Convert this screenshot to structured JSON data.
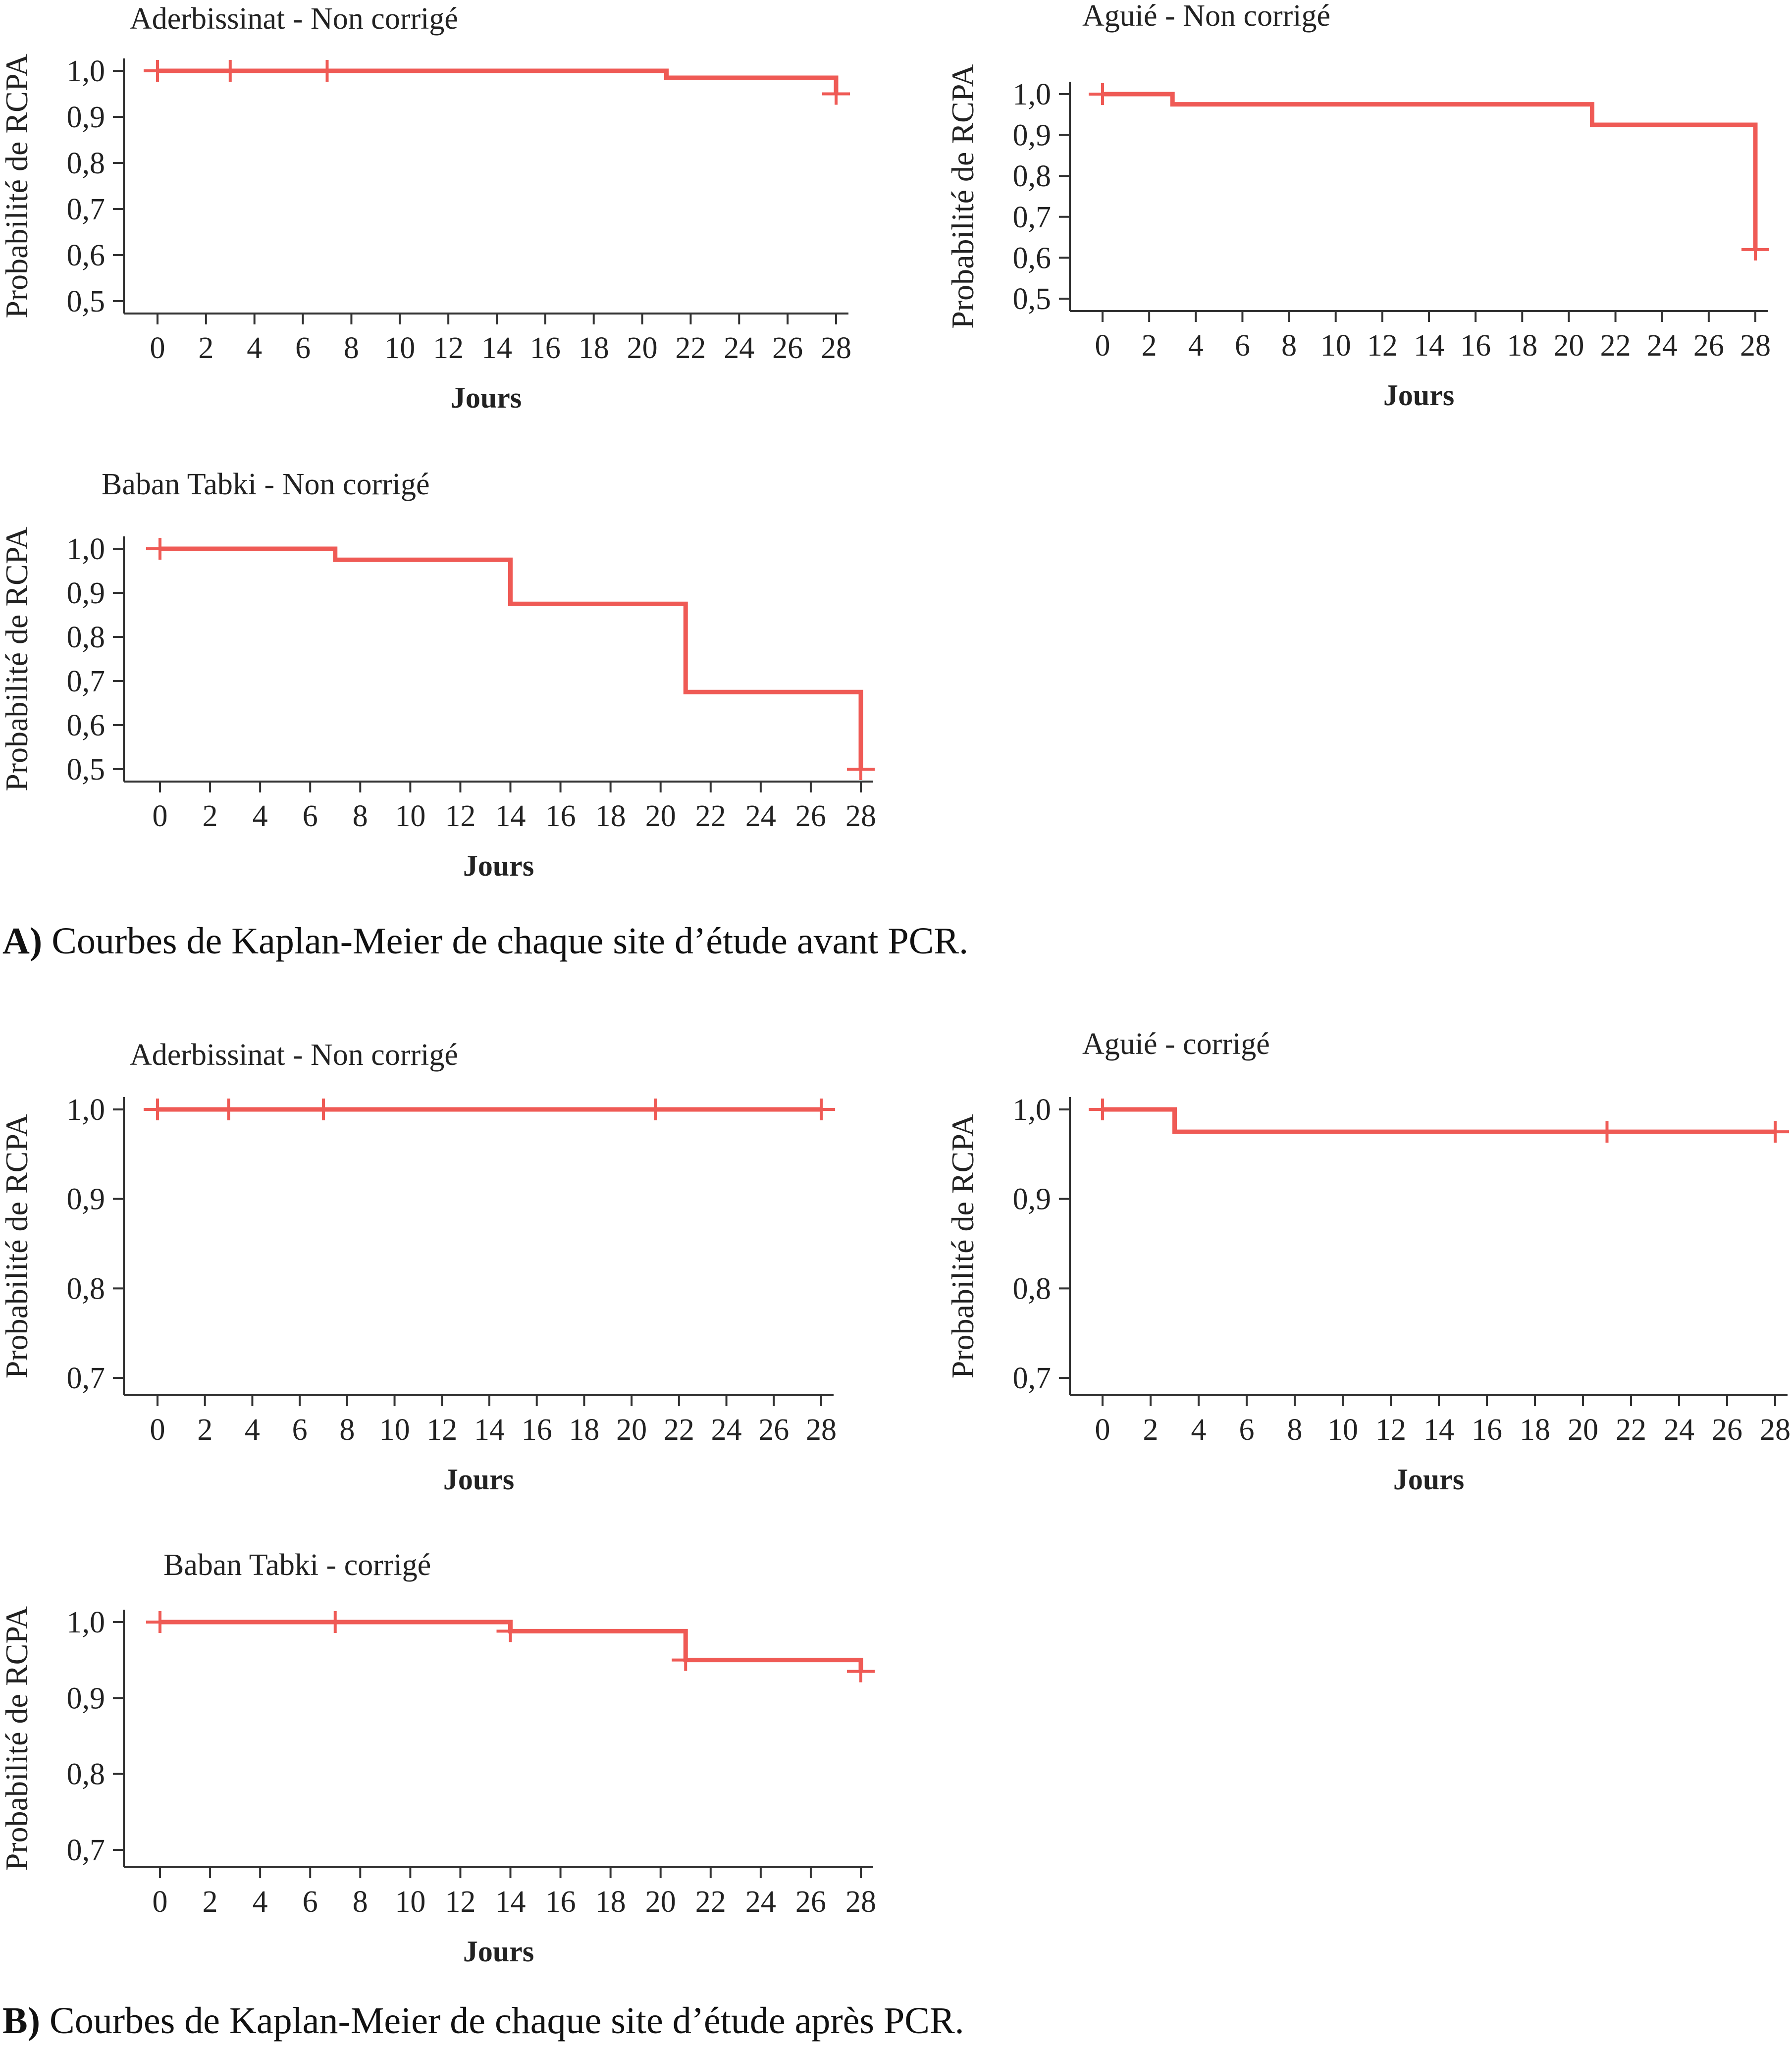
{
  "colors": {
    "curve": "#ef5a55",
    "axis": "#333333",
    "text": "#222222"
  },
  "chart_data": [
    {
      "type": "line",
      "subtype": "kaplan-meier-step",
      "title": "Aderbissinat - Non corrigé",
      "xlabel": "Jours",
      "ylabel": "Probabilité de RCPA",
      "xlim": [
        0,
        28
      ],
      "ylim": [
        0.5,
        1.0
      ],
      "x_ticks": [
        "0",
        "2",
        "4",
        "6",
        "8",
        "10",
        "12",
        "14",
        "16",
        "18",
        "20",
        "22",
        "24",
        "26",
        "28"
      ],
      "y_ticks": [
        "0,5",
        "0,6",
        "0,7",
        "0,8",
        "0,9",
        "1,0"
      ],
      "steps": [
        [
          0,
          1.0
        ],
        [
          21,
          0.985
        ],
        [
          28,
          0.95
        ]
      ],
      "censored": [
        [
          0,
          1.0
        ],
        [
          3,
          1.0
        ],
        [
          7,
          1.0
        ],
        [
          28,
          0.95
        ]
      ]
    },
    {
      "type": "line",
      "subtype": "kaplan-meier-step",
      "title": "Aguié - Non corrigé",
      "xlabel": "Jours",
      "ylabel": "Probabilité de RCPA",
      "xlim": [
        0,
        28
      ],
      "ylim": [
        0.5,
        1.0
      ],
      "x_ticks": [
        "0",
        "2",
        "4",
        "6",
        "8",
        "10",
        "12",
        "14",
        "16",
        "18",
        "20",
        "22",
        "24",
        "26",
        "28"
      ],
      "y_ticks": [
        "0,5",
        "0,6",
        "0,7",
        "0,8",
        "0,9",
        "1,0"
      ],
      "steps": [
        [
          0,
          1.0
        ],
        [
          3,
          0.975
        ],
        [
          21,
          0.925
        ],
        [
          28,
          0.62
        ]
      ],
      "censored": [
        [
          0,
          1.0
        ],
        [
          28,
          0.62
        ]
      ]
    },
    {
      "type": "line",
      "subtype": "kaplan-meier-step",
      "title": "Baban Tabki - Non corrigé",
      "xlabel": "Jours",
      "ylabel": "Probabilité de RCPA",
      "xlim": [
        0,
        28
      ],
      "ylim": [
        0.5,
        1.0
      ],
      "x_ticks": [
        "0",
        "2",
        "4",
        "6",
        "8",
        "10",
        "12",
        "14",
        "16",
        "18",
        "20",
        "22",
        "24",
        "26",
        "28"
      ],
      "y_ticks": [
        "0,5",
        "0,6",
        "0,7",
        "0,8",
        "0,9",
        "1,0"
      ],
      "steps": [
        [
          0,
          1.0
        ],
        [
          7,
          0.975
        ],
        [
          14,
          0.875
        ],
        [
          21,
          0.675
        ],
        [
          28,
          0.5
        ]
      ],
      "censored": [
        [
          0,
          1.0
        ],
        [
          28,
          0.5
        ]
      ]
    },
    {
      "type": "line",
      "subtype": "kaplan-meier-step",
      "title": "Aderbissinat - Non corrigé",
      "xlabel": "Jours",
      "ylabel": "Probabilité de RCPA",
      "xlim": [
        0,
        28
      ],
      "ylim": [
        0.7,
        1.0
      ],
      "x_ticks": [
        "0",
        "2",
        "4",
        "6",
        "8",
        "10",
        "12",
        "14",
        "16",
        "18",
        "20",
        "22",
        "24",
        "26",
        "28"
      ],
      "y_ticks": [
        "0,7",
        "0,8",
        "0,9",
        "1,0"
      ],
      "steps": [
        [
          0,
          1.0
        ],
        [
          28,
          1.0
        ]
      ],
      "censored": [
        [
          0,
          1.0
        ],
        [
          3,
          1.0
        ],
        [
          7,
          1.0
        ],
        [
          21,
          1.0
        ],
        [
          28,
          1.0
        ]
      ]
    },
    {
      "type": "line",
      "subtype": "kaplan-meier-step",
      "title": "Aguié - corrigé",
      "xlabel": "Jours",
      "ylabel": "Probabilité de RCPA",
      "xlim": [
        0,
        28
      ],
      "ylim": [
        0.7,
        1.0
      ],
      "x_ticks": [
        "0",
        "2",
        "4",
        "6",
        "8",
        "10",
        "12",
        "14",
        "16",
        "18",
        "20",
        "22",
        "24",
        "26",
        "28"
      ],
      "y_ticks": [
        "0,7",
        "0,8",
        "0,9",
        "1,0"
      ],
      "steps": [
        [
          0,
          1.0
        ],
        [
          3,
          0.975
        ],
        [
          28,
          0.975
        ]
      ],
      "censored": [
        [
          0,
          1.0
        ],
        [
          21,
          0.975
        ],
        [
          28,
          0.975
        ]
      ]
    },
    {
      "type": "line",
      "subtype": "kaplan-meier-step",
      "title": "Baban Tabki - corrigé",
      "xlabel": "Jours",
      "ylabel": "Probabilité de RCPA",
      "xlim": [
        0,
        28
      ],
      "ylim": [
        0.7,
        1.0
      ],
      "x_ticks": [
        "0",
        "2",
        "4",
        "6",
        "8",
        "10",
        "12",
        "14",
        "16",
        "18",
        "20",
        "22",
        "24",
        "26",
        "28"
      ],
      "y_ticks": [
        "0,7",
        "0,8",
        "0,9",
        "1,0"
      ],
      "steps": [
        [
          0,
          1.0
        ],
        [
          14,
          0.988
        ],
        [
          21,
          0.95
        ],
        [
          28,
          0.935
        ]
      ],
      "censored": [
        [
          0,
          1.0
        ],
        [
          7,
          1.0
        ],
        [
          14,
          0.988
        ],
        [
          21,
          0.95
        ],
        [
          28,
          0.935
        ]
      ]
    }
  ],
  "captions": {
    "a_label": "A)",
    "a_text": " Courbes de Kaplan-Meier de chaque site d’étude avant PCR.",
    "b_label": "B)",
    "b_text": " Courbes de Kaplan-Meier de chaque site d’étude après PCR."
  }
}
